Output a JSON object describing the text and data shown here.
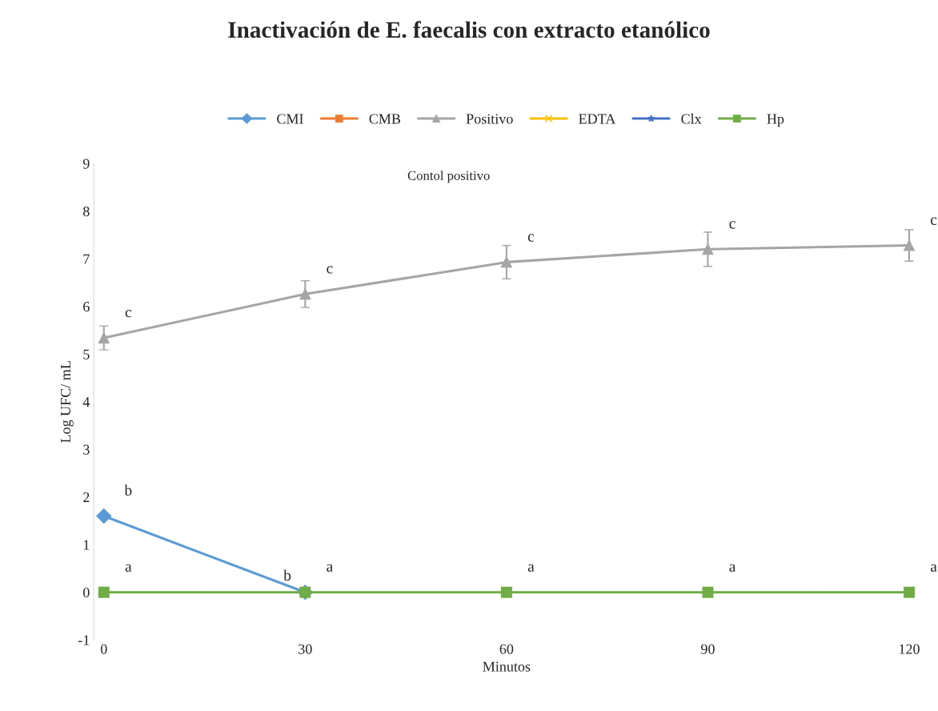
{
  "chart_data": {
    "type": "line",
    "title": "Inactivación de E. faecalis con extracto etanólico",
    "xlabel": "Minutos",
    "ylabel": "Log UFC/ mL",
    "categories": [
      "0",
      "30",
      "60",
      "90",
      "120"
    ],
    "series": [
      {
        "name": "CMI",
        "color": "#5b9bd5",
        "marker": "diamond",
        "values": [
          1.6,
          0,
          null,
          null,
          null
        ]
      },
      {
        "name": "CMB",
        "color": "#ed7d31",
        "marker": "square",
        "values": [
          null,
          null,
          null,
          null,
          null
        ]
      },
      {
        "name": "Positivo",
        "color": "#a5a5a5",
        "marker": "triangle",
        "values": [
          5.34,
          6.26,
          6.93,
          7.2,
          7.28
        ],
        "errors": [
          0.25,
          0.28,
          0.35,
          0.36,
          0.33
        ]
      },
      {
        "name": "EDTA",
        "color": "#ffc000",
        "marker": "cross",
        "values": [
          null,
          null,
          null,
          null,
          null
        ]
      },
      {
        "name": "Clx",
        "color": "#4472c4",
        "marker": "star",
        "values": [
          null,
          null,
          null,
          null,
          null
        ]
      },
      {
        "name": "Hp",
        "color": "#70ad47",
        "marker": "square",
        "values": [
          0,
          0,
          0,
          0,
          0
        ]
      }
    ],
    "ylim": [
      -1,
      9
    ],
    "yticks": [
      -1,
      0,
      1,
      2,
      3,
      4,
      5,
      6,
      7,
      8,
      9
    ],
    "grid": false,
    "legend": "top",
    "annotations": [
      "Contol positivo",
      {
        "text": "c",
        "x": "0",
        "y": 5.34
      },
      {
        "text": "c",
        "x": "30",
        "y": 6.26
      },
      {
        "text": "c",
        "x": "60",
        "y": 6.93
      },
      {
        "text": "c",
        "x": "90",
        "y": 7.2
      },
      {
        "text": "c",
        "x": "120",
        "y": 7.28
      },
      {
        "text": "a",
        "x": "0",
        "y": 0
      },
      {
        "text": "a",
        "x": "30",
        "y": 0
      },
      {
        "text": "a",
        "x": "60",
        "y": 0
      },
      {
        "text": "a",
        "x": "90",
        "y": 0
      },
      {
        "text": "a",
        "x": "120",
        "y": 0
      },
      {
        "text": "b",
        "x": "0",
        "y": 1.6
      },
      {
        "text": "b",
        "x": "30",
        "y": 0
      }
    ]
  }
}
